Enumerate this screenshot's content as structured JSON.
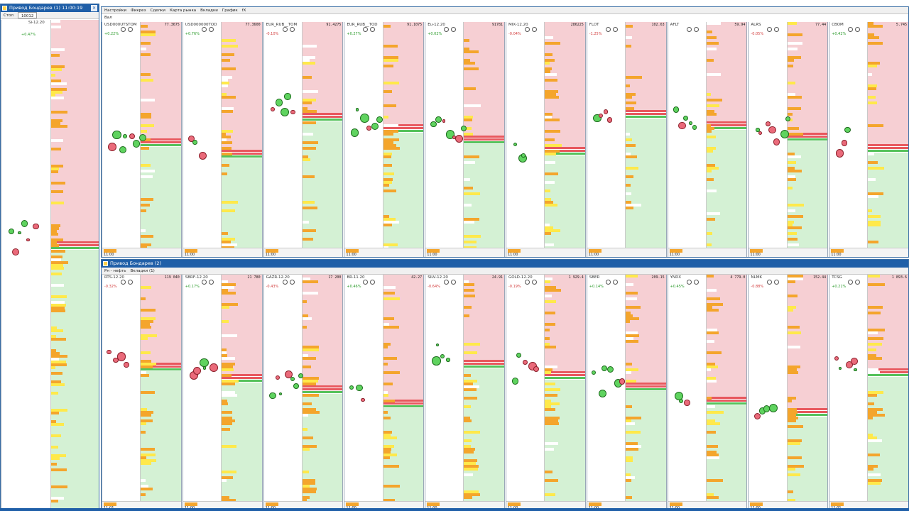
{
  "top_window": {
    "title": "Привод Бондарев (1) 11:00:19",
    "field": "10012",
    "sub_label": "Стол",
    "instrument": "Si-12.20",
    "change": "+0.47%"
  },
  "main_window": {
    "title": "Привод Бондарев (1)",
    "menu": [
      "Настройки",
      "Фикрез",
      "Сделки",
      "Карта рынка",
      "Вкладки",
      "График",
      "fX"
    ],
    "tab": "Вал"
  },
  "lower_window": {
    "title": "Привод Бондарев (2)",
    "menu": [
      "Рн - нефть",
      "Вкладки (1)"
    ]
  },
  "top_row_panels": [
    {
      "ticker": "USD000UTSTOM",
      "change": "+0.22%",
      "price": "77.3675",
      "time": "11:00"
    },
    {
      "ticker": "USD000000TOD",
      "change": "+0.76%",
      "price": "77.3600",
      "time": "11:00"
    },
    {
      "ticker": "EUR_RUB__TOM",
      "change": "-0.10%",
      "price": "91.4275",
      "time": "11:00"
    },
    {
      "ticker": "EUR_RUB__TOD",
      "change": "+0.27%",
      "price": "91.1075",
      "time": "11:00"
    },
    {
      "ticker": "Eu-12.20",
      "change": "+0.02%",
      "price": "91781",
      "time": "11:00"
    },
    {
      "ticker": "MIX-12.20",
      "change": "-0.04%",
      "price": "286225",
      "time": "11:00"
    },
    {
      "ticker": "FLOT",
      "change": "-1.25%",
      "price": "102.63",
      "time": "11:00"
    },
    {
      "ticker": "AFLT",
      "change": "",
      "price": "59.94",
      "time": "11:00"
    },
    {
      "ticker": "ALRS",
      "change": "-0.05%",
      "price": "77.44",
      "time": "11:00"
    },
    {
      "ticker": "CBOM",
      "change": "+0.42%",
      "price": "5.745",
      "time": "11:00"
    }
  ],
  "bottom_row_panels": [
    {
      "ticker": "RTS-12.20",
      "change": "-0.32%",
      "price": "119 040",
      "time": "11:01"
    },
    {
      "ticker": "SBRF-12.20",
      "change": "+0.17%",
      "price": "21 780",
      "time": "11:00"
    },
    {
      "ticker": "GAZR-12.20",
      "change": "-0.43%",
      "price": "17 200",
      "time": "11:00"
    },
    {
      "ticker": "BR-11.20",
      "change": "+0.46%",
      "price": "42.27",
      "time": "11:00"
    },
    {
      "ticker": "SILV-12.20",
      "change": "-0.64%",
      "price": "24.91",
      "time": "11:00"
    },
    {
      "ticker": "GOLD-12.20",
      "change": "-0.19%",
      "price": "1 929.4",
      "time": "11:00"
    },
    {
      "ticker": "SBER",
      "change": "+0.14%",
      "price": "209.15",
      "time": "11:00"
    },
    {
      "ticker": "YNDX",
      "change": "+0.45%",
      "price": "4 779.0",
      "time": "11:00"
    },
    {
      "ticker": "NLMK",
      "change": "-0.88%",
      "price": "152.44",
      "time": "11:00"
    },
    {
      "ticker": "TCSG",
      "change": "+0.21%",
      "price": "1 893.6",
      "time": "11:01"
    }
  ],
  "colors": {
    "ask": "#f6cfd3",
    "bid": "#d4f1d4",
    "spread": "#e8585e",
    "volume_orange": "#f4a52c",
    "volume_yellow": "#ffe94a",
    "titlebar": "#1f5fa8"
  }
}
